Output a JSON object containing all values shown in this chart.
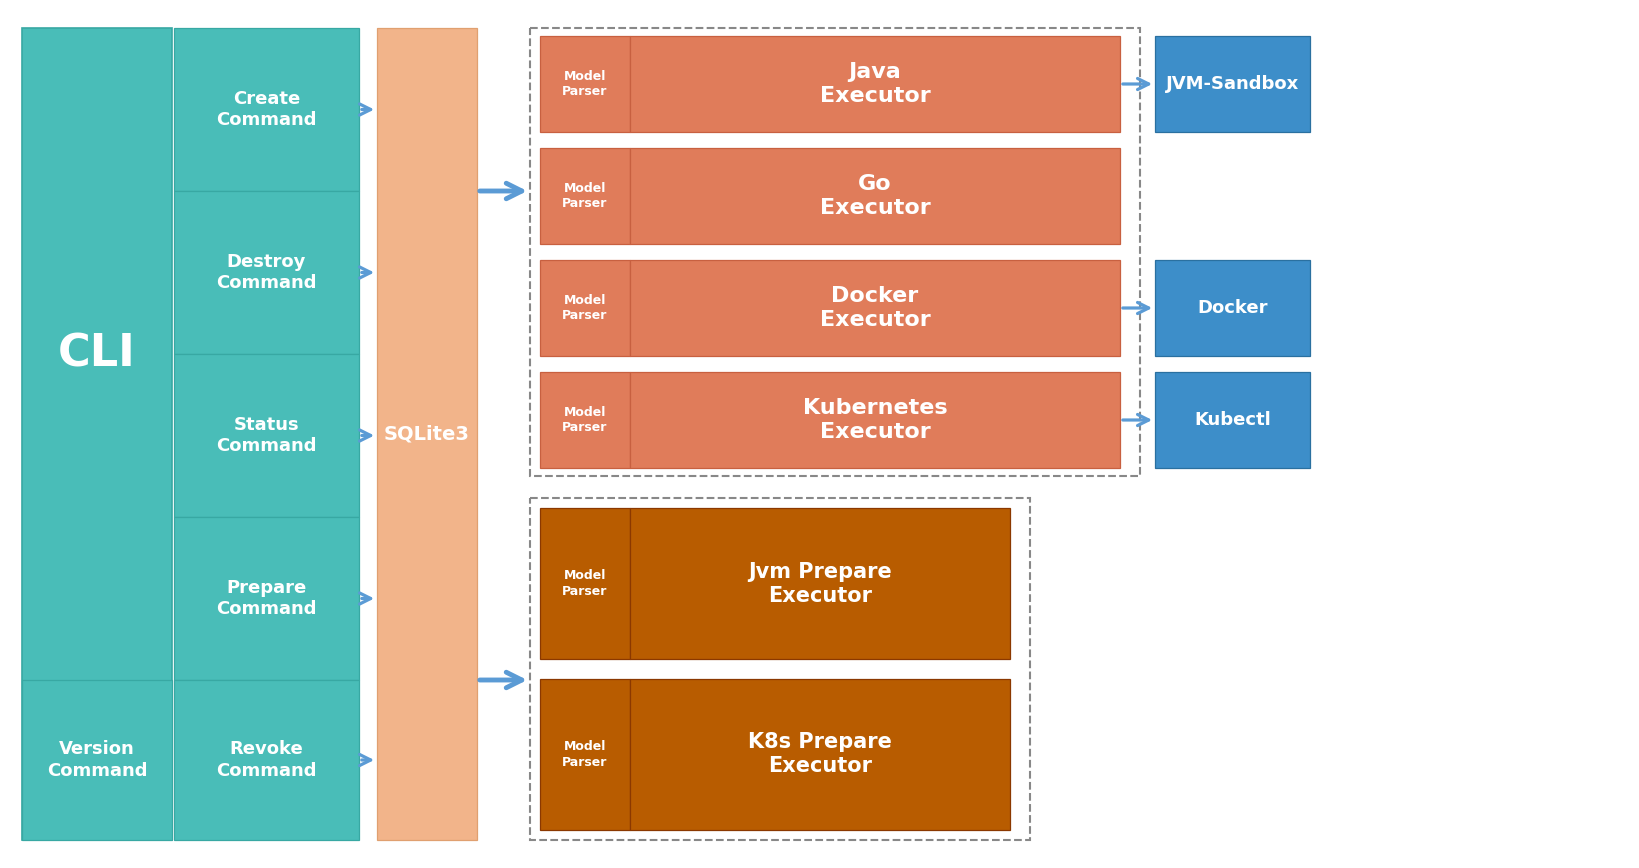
{
  "bg_color": "#ffffff",
  "teal_color": "#49bdb8",
  "teal_border": "#38a8a3",
  "salmon_color": "#e07c5a",
  "blue_color": "#3d8ec9",
  "orange_dark": "#b85c00",
  "arrow_color": "#5b9bd5",
  "sqlite_color": "#f2b48a",
  "sqlite_border": "#e0a070",
  "cli_label": "CLI",
  "sqlite_label": "SQLite3",
  "commands_top": [
    "Create\nCommand",
    "Destroy\nCommand",
    "Status\nCommand",
    "Prepare\nCommand"
  ],
  "cmd_bottom_left": "Version\nCommand",
  "cmd_bottom_right": "Revoke\nCommand",
  "executors_top": [
    {
      "label": "Java\nExecutor",
      "has_right": true,
      "right_label": "JVM-Sandbox"
    },
    {
      "label": "Go\nExecutor",
      "has_right": false,
      "right_label": ""
    },
    {
      "label": "Docker\nExecutor",
      "has_right": true,
      "right_label": "Docker"
    },
    {
      "label": "Kubernetes\nExecutor",
      "has_right": true,
      "right_label": "Kubectl"
    }
  ],
  "executors_bottom": [
    {
      "label": "Jvm Prepare\nExecutor"
    },
    {
      "label": "K8s Prepare\nExecutor"
    }
  ],
  "model_parser_label": "Model\nParser"
}
